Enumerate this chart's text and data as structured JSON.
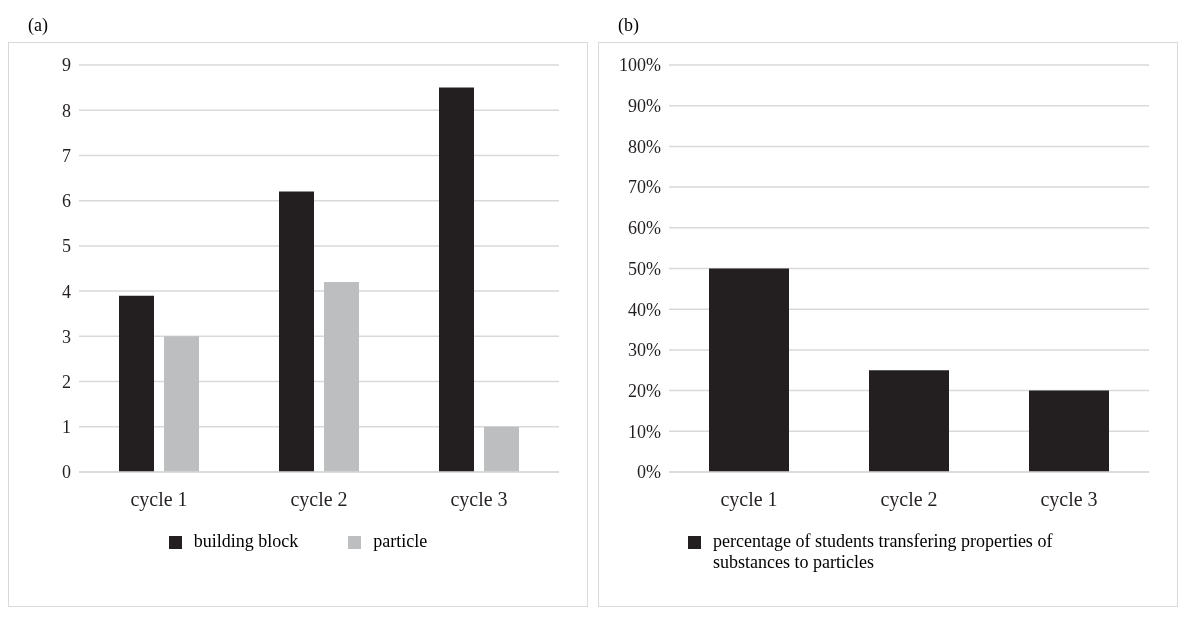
{
  "chart_data": [
    {
      "type": "bar",
      "title": "(a)",
      "categories": [
        "cycle 1",
        "cycle 2",
        "cycle 3"
      ],
      "series": [
        {
          "name": "building block",
          "color": "#231f20",
          "values": [
            3.9,
            6.2,
            8.5
          ]
        },
        {
          "name": "particle",
          "color": "#bcbec0",
          "values": [
            3.0,
            4.2,
            1.0
          ]
        }
      ],
      "ylim": [
        0,
        9
      ],
      "yticks": [
        0,
        1,
        2,
        3,
        4,
        5,
        6,
        7,
        8,
        9
      ],
      "grid": "y",
      "legend": "bottom"
    },
    {
      "type": "bar",
      "title": "(b)",
      "categories": [
        "cycle 1",
        "cycle 2",
        "cycle 3"
      ],
      "series": [
        {
          "name": "percentage of students transfering properties of substances to particles",
          "color": "#231f20",
          "values": [
            50,
            25,
            20
          ]
        }
      ],
      "ylim": [
        0,
        100
      ],
      "yticks": [
        {
          "value": 0,
          "label": "0%"
        },
        {
          "value": 10,
          "label": "10%"
        },
        {
          "value": 20,
          "label": "20%"
        },
        {
          "value": 30,
          "label": "30%"
        },
        {
          "value": 40,
          "label": "40%"
        },
        {
          "value": 50,
          "label": "50%"
        },
        {
          "value": 60,
          "label": "60%"
        },
        {
          "value": 70,
          "label": "70%"
        },
        {
          "value": 80,
          "label": "80%"
        },
        {
          "value": 90,
          "label": "90%"
        },
        {
          "value": 100,
          "label": "100%"
        }
      ],
      "grid": "y",
      "legend": "bottom"
    }
  ]
}
